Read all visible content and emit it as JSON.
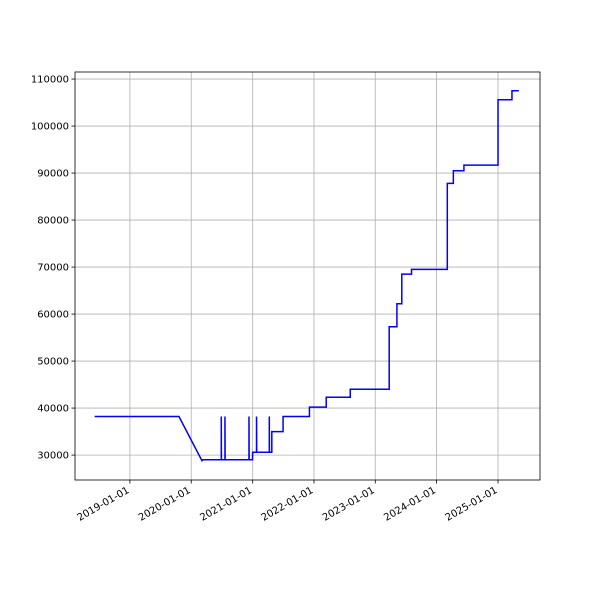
{
  "chart_data": {
    "type": "line",
    "color": "#0000ff",
    "grid": true,
    "x": [
      "2018-06-05",
      "2019-10-20",
      "2020-03-05",
      "2020-03-10",
      "2020-06-28",
      "2020-06-28",
      "2020-06-29",
      "2020-07-20",
      "2020-07-20",
      "2020-07-21",
      "2020-12-10",
      "2020-12-10",
      "2020-12-11",
      "2020-12-31",
      "2021-01-01",
      "2021-01-24",
      "2021-01-24",
      "2021-01-25",
      "2021-04-10",
      "2021-04-10",
      "2021-04-11",
      "2021-04-25",
      "2021-04-25",
      "2021-07-01",
      "2021-07-01",
      "2021-12-05",
      "2021-12-05",
      "2022-03-15",
      "2022-03-15",
      "2022-08-05",
      "2022-08-05",
      "2023-03-25",
      "2023-03-25",
      "2023-05-10",
      "2023-05-10",
      "2023-06-08",
      "2023-06-08",
      "2023-08-05",
      "2023-08-05",
      "2024-03-05",
      "2024-03-05",
      "2024-04-10",
      "2024-04-10",
      "2024-06-12",
      "2024-06-12",
      "2025-01-01",
      "2025-01-01",
      "2025-03-25",
      "2025-03-25",
      "2025-05-05"
    ],
    "values": [
      38200,
      38200,
      28800,
      29000,
      29000,
      38200,
      29000,
      29000,
      38200,
      29000,
      29000,
      38200,
      29000,
      29000,
      30600,
      30600,
      38200,
      30600,
      30600,
      38200,
      30600,
      30600,
      35000,
      35000,
      38200,
      38200,
      40200,
      40200,
      42300,
      42300,
      44000,
      44000,
      57300,
      57300,
      62200,
      62200,
      68500,
      68500,
      69500,
      69500,
      87800,
      87800,
      90500,
      90500,
      91700,
      91700,
      105600,
      105600,
      107500,
      107500
    ],
    "xlim": [
      "2018-02-08",
      "2025-09-08"
    ],
    "xticks": [
      "2019-01-01",
      "2020-01-01",
      "2021-01-01",
      "2022-01-01",
      "2023-01-01",
      "2024-01-01",
      "2025-01-01"
    ],
    "ylim": [
      24700,
      111500
    ],
    "yticks": [
      30000,
      40000,
      50000,
      60000,
      70000,
      80000,
      90000,
      100000,
      110000
    ]
  }
}
